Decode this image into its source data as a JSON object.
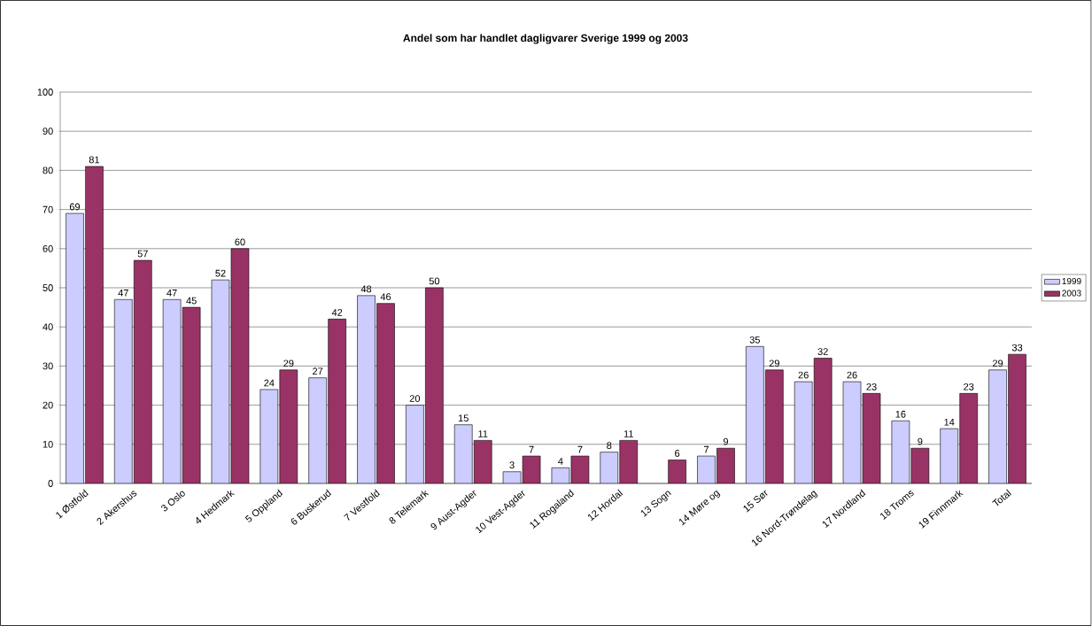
{
  "chart_data": {
    "type": "bar",
    "title": "Andel som har handlet dagligvarer Sverige 1999 og 2003",
    "categories": [
      "1  Østfold",
      "2  Akershus",
      "3  Oslo",
      "4  Hedmark",
      "5  Oppland",
      "6  Buskerud",
      "7  Vestfold",
      "8  Telemark",
      "9  Aust-Agder",
      "10  Vest-Agder",
      "11  Rogaland",
      "12  Hordal",
      "13  Sogn",
      "14  Møre og",
      "15  Sør",
      "16  Nord-Trøndelag",
      "17  Nordland",
      "18  Troms",
      "19  Finnmark",
      "Total"
    ],
    "series": [
      {
        "name": "1999",
        "color": "#ccccff",
        "values": [
          69,
          47,
          47,
          52,
          24,
          27,
          48,
          20,
          15,
          3,
          4,
          8,
          null,
          7,
          35,
          26,
          26,
          16,
          14,
          29
        ]
      },
      {
        "name": "2003",
        "color": "#993366",
        "values": [
          81,
          57,
          45,
          60,
          29,
          42,
          46,
          50,
          11,
          7,
          7,
          11,
          6,
          9,
          29,
          32,
          23,
          9,
          23,
          33
        ]
      }
    ],
    "ylim": [
      0,
      100
    ],
    "yticks": [
      0,
      10,
      20,
      30,
      40,
      50,
      60,
      70,
      80,
      90,
      100
    ],
    "grid": "y",
    "legend": "right",
    "data_labels": true
  }
}
